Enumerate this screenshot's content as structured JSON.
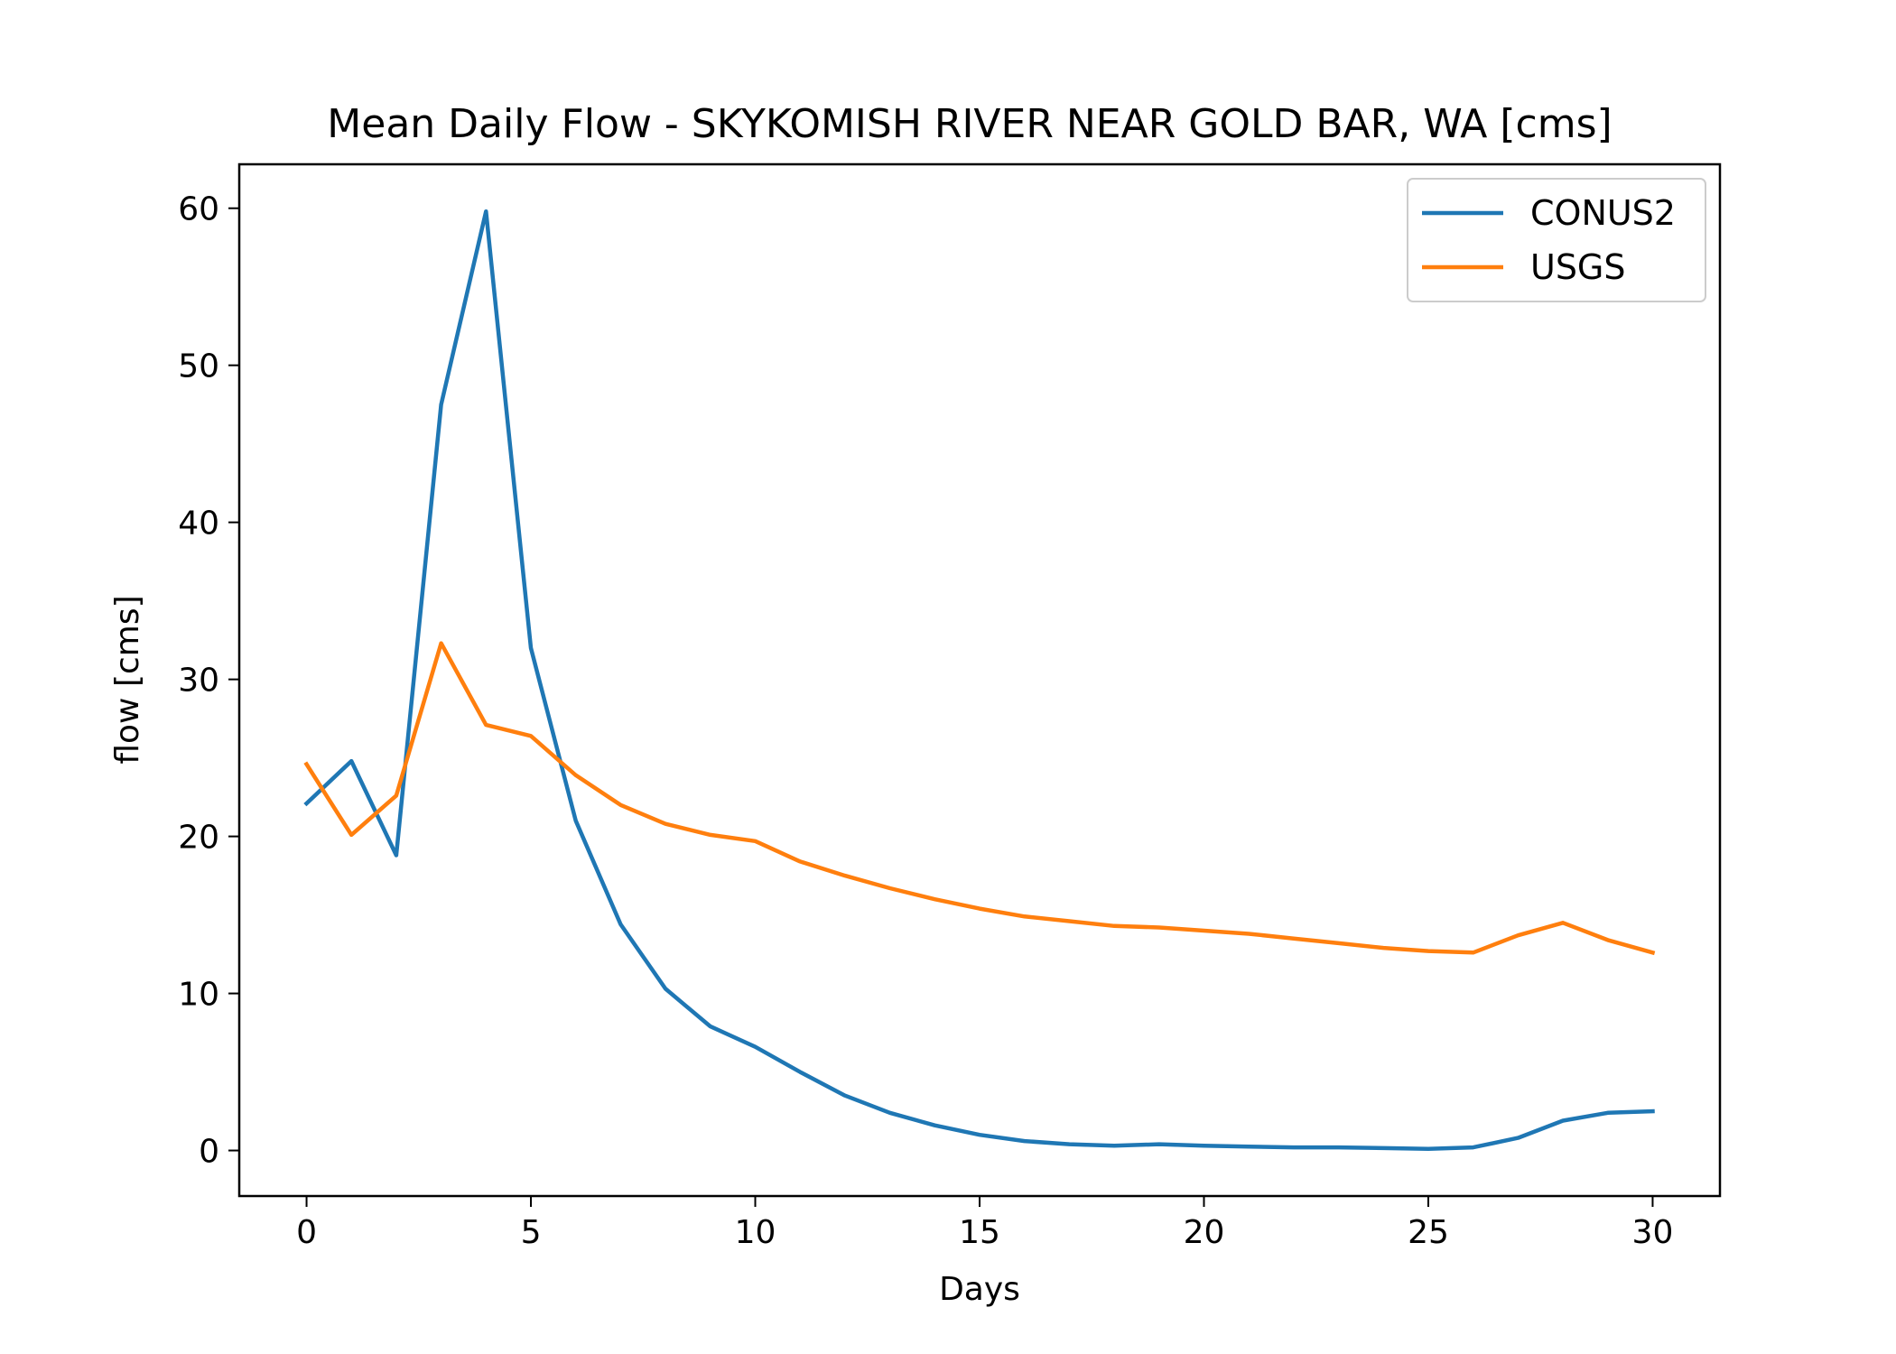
{
  "chart_data": {
    "type": "line",
    "title": "Mean Daily Flow - SKYKOMISH RIVER NEAR GOLD BAR, WA [cms]",
    "xlabel": "Days",
    "ylabel": "flow [cms]",
    "xlim": [
      -1.5,
      31.5
    ],
    "ylim": [
      -2.9,
      62.8
    ],
    "xticks": [
      0,
      5,
      10,
      15,
      20,
      25,
      30
    ],
    "yticks": [
      0,
      10,
      20,
      30,
      40,
      50,
      60
    ],
    "grid": false,
    "legend_position": "top-right",
    "x": [
      0,
      1,
      2,
      3,
      4,
      5,
      6,
      7,
      8,
      9,
      10,
      11,
      12,
      13,
      14,
      15,
      16,
      17,
      18,
      19,
      20,
      21,
      22,
      23,
      24,
      25,
      26,
      27,
      28,
      29,
      30
    ],
    "series": [
      {
        "name": "CONUS2",
        "color": "#1f77b4",
        "values": [
          22.1,
          24.8,
          18.8,
          47.5,
          59.8,
          32.0,
          21.0,
          14.4,
          10.3,
          7.9,
          6.6,
          5.0,
          3.5,
          2.4,
          1.6,
          1.0,
          0.6,
          0.4,
          0.3,
          0.4,
          0.3,
          0.25,
          0.2,
          0.2,
          0.15,
          0.1,
          0.2,
          0.8,
          1.9,
          2.4,
          2.5
        ]
      },
      {
        "name": "USGS",
        "color": "#ff7f0e",
        "values": [
          24.6,
          20.1,
          22.6,
          32.3,
          27.1,
          26.4,
          23.9,
          22.0,
          20.8,
          20.1,
          19.7,
          18.4,
          17.5,
          16.7,
          16.0,
          15.4,
          14.9,
          14.6,
          14.3,
          14.2,
          14.0,
          13.8,
          13.5,
          13.2,
          12.9,
          12.7,
          12.6,
          13.7,
          14.5,
          13.4,
          12.6
        ]
      }
    ]
  }
}
